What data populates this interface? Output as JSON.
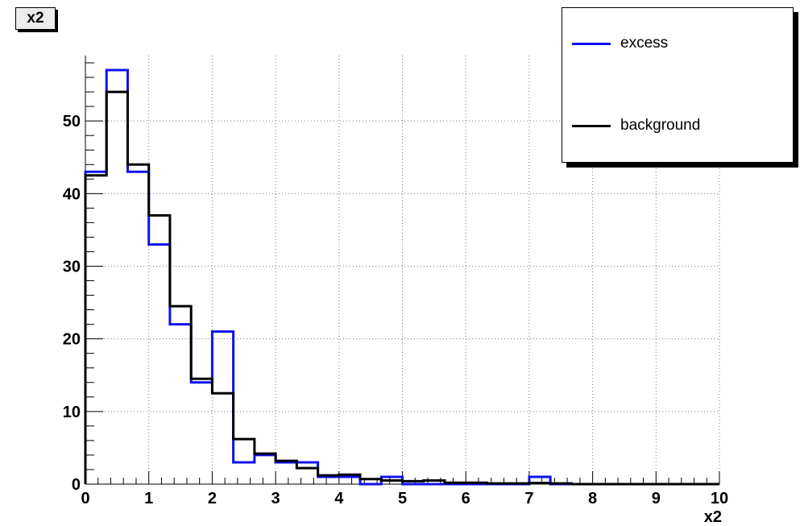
{
  "title_box": "x2",
  "chart_data": {
    "type": "histogram",
    "xlabel": "x2",
    "ylabel": "",
    "xlim": [
      0,
      10
    ],
    "ylim": [
      0,
      59
    ],
    "grid": true,
    "legend_position": "top-right",
    "x_ticks": [
      "0",
      "1",
      "2",
      "3",
      "4",
      "5",
      "6",
      "7",
      "8",
      "9",
      "10"
    ],
    "y_ticks": [
      "0",
      "10",
      "20",
      "30",
      "40",
      "50"
    ],
    "bin_edges": [
      0,
      0.333,
      0.667,
      1,
      1.333,
      1.667,
      2,
      2.333,
      2.667,
      3,
      3.333,
      3.667,
      4,
      4.333,
      4.667,
      5,
      5.333,
      5.667,
      6,
      6.333,
      6.667,
      7,
      7.333,
      7.667,
      8,
      8.333,
      8.667,
      9,
      9.333,
      9.667,
      10
    ],
    "series": [
      {
        "name": "excess",
        "color": "#1010ee",
        "values": [
          43,
          57,
          43,
          33,
          22,
          14,
          21,
          3,
          4,
          3,
          3,
          1,
          1,
          0,
          1,
          0,
          0,
          0,
          0,
          0,
          0,
          1,
          0,
          0,
          0,
          0,
          0,
          0,
          0,
          0
        ]
      },
      {
        "name": "background",
        "color": "#000000",
        "values": [
          42.5,
          54,
          44,
          37,
          24.5,
          14.5,
          12.5,
          6.2,
          4.2,
          3.2,
          2.2,
          1.2,
          1.3,
          0.7,
          0.5,
          0.4,
          0.5,
          0.2,
          0.2,
          0.1,
          0.1,
          0.15,
          0.1,
          0,
          0,
          0,
          0,
          0,
          0,
          0
        ]
      }
    ]
  },
  "legend": {
    "entries": [
      {
        "label": "excess",
        "color": "#1010ee"
      },
      {
        "label": "background",
        "color": "#000000"
      }
    ]
  }
}
